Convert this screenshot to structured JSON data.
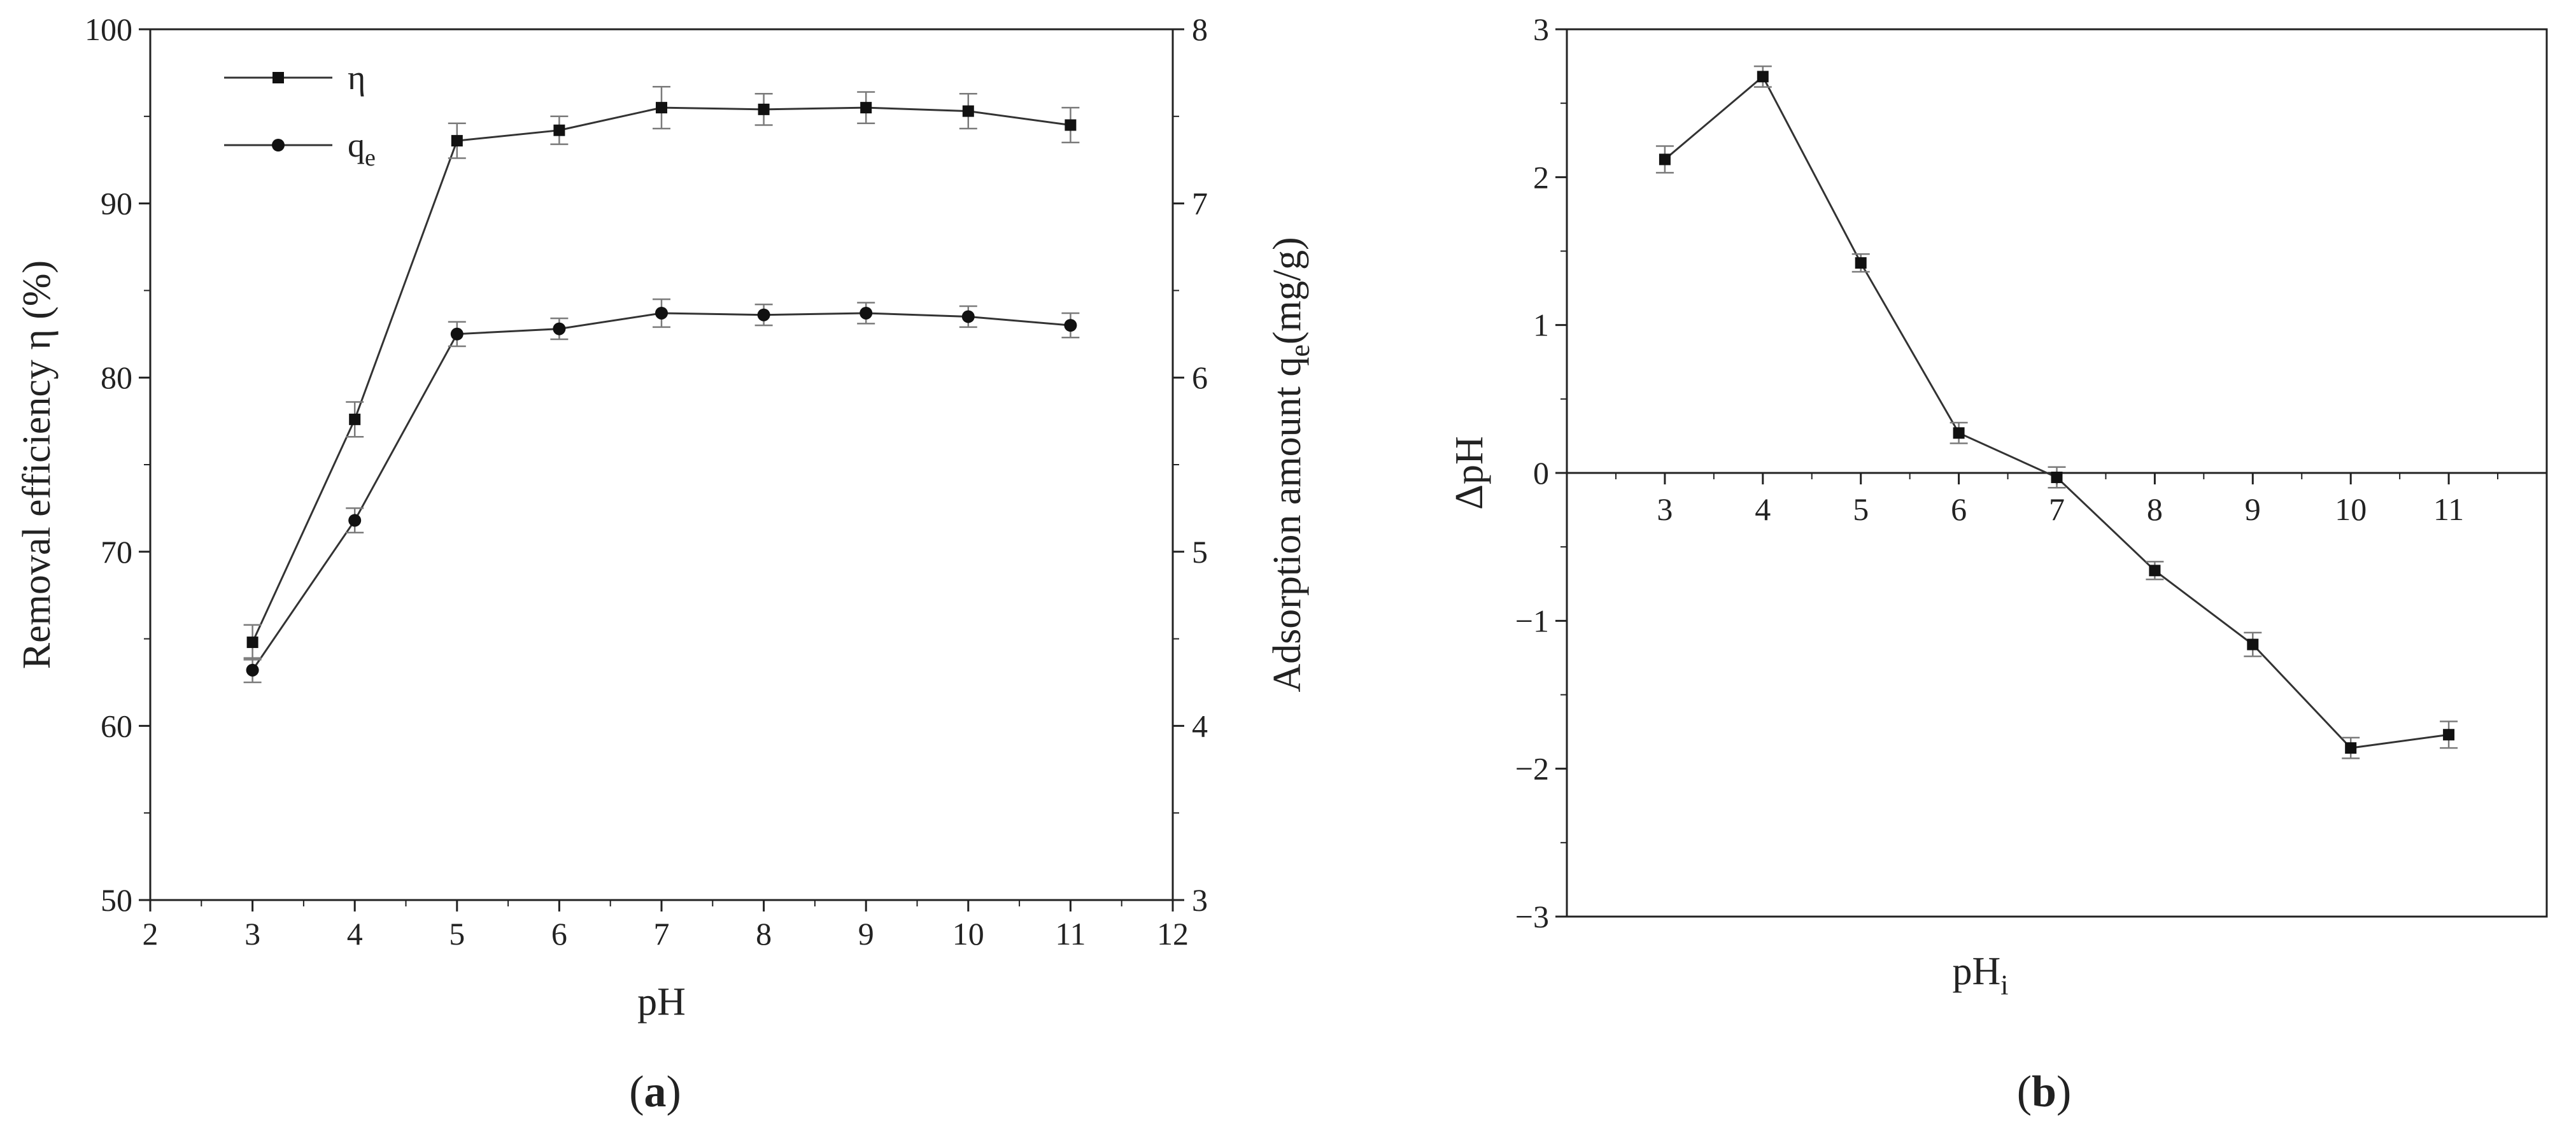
{
  "chart_data": [
    {
      "panel_label": "a",
      "type": "line",
      "x": [
        3,
        4,
        5,
        6,
        7,
        8,
        9,
        10,
        11
      ],
      "xlabel": "pH",
      "xlim": [
        2,
        12
      ],
      "xticks": [
        2,
        3,
        4,
        5,
        6,
        7,
        8,
        9,
        10,
        11,
        12
      ],
      "ylabel_left": "Removal efficiency η (%)",
      "ylim_left": [
        50,
        100
      ],
      "yticks_left": [
        50,
        60,
        70,
        80,
        90,
        100
      ],
      "ylabel_right_main": "Adsorption amount q",
      "ylabel_right_sub": "e",
      "ylabel_right_tail": "(mg/g)",
      "ylim_right": [
        3,
        8
      ],
      "yticks_right": [
        3,
        4,
        5,
        6,
        7,
        8
      ],
      "grid": false,
      "legend_position": "top-left",
      "series": [
        {
          "name": "η",
          "axis": "left",
          "marker": "square",
          "values": [
            64.8,
            77.6,
            93.6,
            94.2,
            95.5,
            95.4,
            95.5,
            95.3,
            94.5
          ],
          "errors": [
            1.0,
            1.0,
            1.0,
            0.8,
            1.2,
            0.9,
            0.9,
            1.0,
            1.0
          ]
        },
        {
          "name": "q",
          "name_sub": "e",
          "axis": "right",
          "marker": "circle",
          "values": [
            4.32,
            5.18,
            6.25,
            6.28,
            6.37,
            6.36,
            6.37,
            6.35,
            6.3
          ],
          "errors": [
            0.07,
            0.07,
            0.07,
            0.06,
            0.08,
            0.06,
            0.06,
            0.06,
            0.07
          ]
        }
      ]
    },
    {
      "panel_label": "b",
      "type": "line",
      "x": [
        3,
        4,
        5,
        6,
        7,
        8,
        9,
        10,
        11
      ],
      "xlabel_main": "pH",
      "xlabel_sub": "i",
      "xticks": [
        3,
        4,
        5,
        6,
        7,
        8,
        9,
        10,
        11
      ],
      "xlim": [
        2,
        12
      ],
      "ylabel": "ΔpH",
      "ylim": [
        -3,
        3
      ],
      "yticks": [
        -3,
        -2,
        -1,
        0,
        1,
        2,
        3
      ],
      "ytick_labels": [
        "−3",
        "−2",
        "−1",
        "0",
        "1",
        "2",
        "3"
      ],
      "grid": false,
      "series": [
        {
          "marker": "square",
          "values": [
            2.12,
            2.68,
            1.42,
            0.27,
            -0.03,
            -0.66,
            -1.16,
            -1.86,
            -1.77
          ],
          "errors": [
            0.09,
            0.07,
            0.06,
            0.07,
            0.07,
            0.06,
            0.08,
            0.07,
            0.09
          ]
        }
      ]
    }
  ],
  "captions": {
    "a_open": "(",
    "a_letter": "a",
    "a_close": ")",
    "b_open": "(",
    "b_letter": "b",
    "b_close": ")"
  },
  "colors": {
    "axis": "#222222",
    "line": "#333333",
    "error_bar": "#7a7a7a",
    "marker": "#111111"
  }
}
